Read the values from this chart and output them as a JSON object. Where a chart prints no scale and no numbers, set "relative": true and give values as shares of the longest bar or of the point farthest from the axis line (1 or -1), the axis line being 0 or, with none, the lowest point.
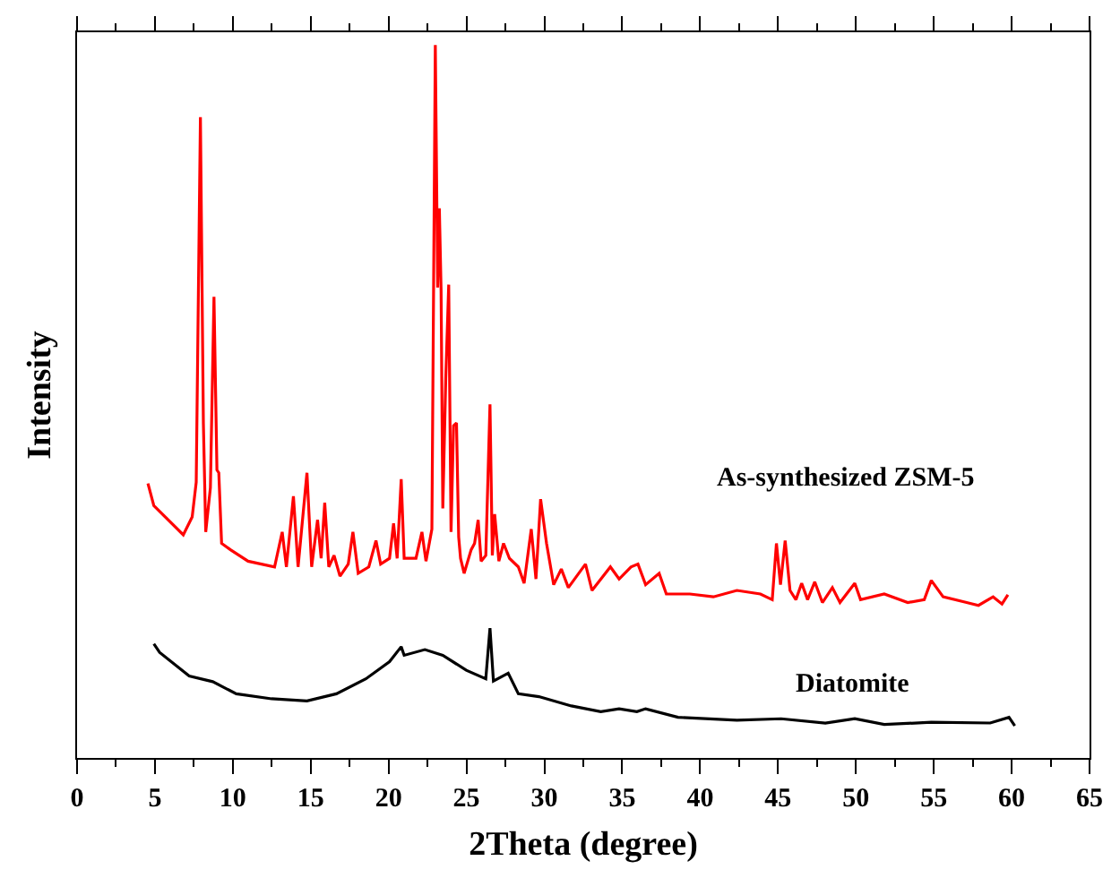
{
  "chart_data": {
    "type": "line",
    "relative": true,
    "xlabel": "2Theta (degree)",
    "ylabel": "Intensity",
    "xlim": [
      0,
      65
    ],
    "xticks": [
      0,
      5,
      10,
      15,
      20,
      25,
      30,
      35,
      40,
      45,
      50,
      55,
      60,
      65
    ],
    "legend": false,
    "marker": "none",
    "line_style": "solid",
    "series": [
      {
        "name": "As-synthesized ZSM-5",
        "color": "#ff0000",
        "x": [
          4.55,
          4.93,
          6.82,
          7.39,
          7.65,
          7.92,
          8.11,
          8.26,
          8.56,
          8.79,
          8.98,
          9.1,
          9.28,
          9.85,
          10.98,
          12.68,
          13.17,
          13.44,
          13.89,
          14.19,
          14.76,
          15.06,
          15.44,
          15.67,
          15.9,
          16.16,
          16.5,
          16.88,
          17.41,
          17.71,
          18.05,
          18.73,
          19.19,
          19.49,
          20.06,
          20.32,
          20.55,
          20.81,
          21.0,
          21.76,
          22.14,
          22.4,
          22.78,
          23.0,
          23.15,
          23.26,
          23.37,
          23.48,
          23.67,
          23.86,
          24.01,
          24.17,
          24.36,
          24.5,
          24.62,
          24.85,
          25.3,
          25.52,
          25.75,
          25.94,
          26.24,
          26.51,
          26.66,
          26.81,
          27.08,
          27.38,
          27.76,
          28.33,
          28.7,
          29.16,
          29.46,
          29.76,
          30.14,
          30.6,
          31.09,
          31.54,
          32.64,
          33.06,
          34.24,
          34.8,
          35.56,
          36.01,
          36.5,
          37.37,
          37.83,
          39.34,
          40.85,
          42.36,
          43.87,
          44.63,
          44.9,
          45.16,
          45.46,
          45.77,
          46.15,
          46.52,
          46.9,
          47.36,
          47.85,
          48.49,
          48.98,
          49.93,
          50.3,
          51.82,
          53.33,
          54.39,
          54.84,
          55.6,
          57.11,
          57.87,
          58.81,
          59.38,
          59.76
        ],
        "values": [
          0.385,
          0.354,
          0.313,
          0.338,
          0.387,
          0.899,
          0.47,
          0.317,
          0.379,
          0.647,
          0.404,
          0.4,
          0.301,
          0.292,
          0.276,
          0.268,
          0.317,
          0.268,
          0.367,
          0.268,
          0.4,
          0.268,
          0.334,
          0.28,
          0.358,
          0.268,
          0.284,
          0.255,
          0.272,
          0.317,
          0.259,
          0.268,
          0.305,
          0.272,
          0.28,
          0.329,
          0.28,
          0.391,
          0.28,
          0.28,
          0.317,
          0.276,
          0.321,
          1.0,
          0.66,
          0.771,
          0.656,
          0.35,
          0.532,
          0.664,
          0.317,
          0.466,
          0.47,
          0.31,
          0.28,
          0.259,
          0.292,
          0.301,
          0.334,
          0.276,
          0.284,
          0.496,
          0.284,
          0.342,
          0.276,
          0.301,
          0.28,
          0.268,
          0.245,
          0.321,
          0.251,
          0.363,
          0.301,
          0.243,
          0.265,
          0.239,
          0.272,
          0.235,
          0.268,
          0.251,
          0.268,
          0.272,
          0.243,
          0.259,
          0.23,
          0.23,
          0.226,
          0.235,
          0.23,
          0.222,
          0.301,
          0.243,
          0.305,
          0.235,
          0.222,
          0.245,
          0.222,
          0.247,
          0.218,
          0.239,
          0.218,
          0.245,
          0.222,
          0.23,
          0.218,
          0.222,
          0.249,
          0.226,
          0.218,
          0.214,
          0.226,
          0.216,
          0.229
        ]
      },
      {
        "name": "Diatomite",
        "color": "#000000",
        "x": [
          4.93,
          5.3,
          7.2,
          8.71,
          10.22,
          12.49,
          14.76,
          16.65,
          18.54,
          20.06,
          20.81,
          21.0,
          22.33,
          23.48,
          24.99,
          26.24,
          26.51,
          26.73,
          27.68,
          28.33,
          29.65,
          31.73,
          33.62,
          34.8,
          35.94,
          36.5,
          38.58,
          42.36,
          45.2,
          48.04,
          49.93,
          51.82,
          54.84,
          58.62,
          59.83,
          60.2
        ],
        "values": [
          0.16,
          0.148,
          0.115,
          0.107,
          0.09,
          0.083,
          0.08,
          0.09,
          0.111,
          0.135,
          0.156,
          0.144,
          0.152,
          0.144,
          0.123,
          0.111,
          0.182,
          0.108,
          0.119,
          0.09,
          0.086,
          0.073,
          0.065,
          0.069,
          0.065,
          0.069,
          0.057,
          0.053,
          0.055,
          0.049,
          0.055,
          0.047,
          0.05,
          0.049,
          0.057,
          0.045
        ]
      }
    ]
  }
}
